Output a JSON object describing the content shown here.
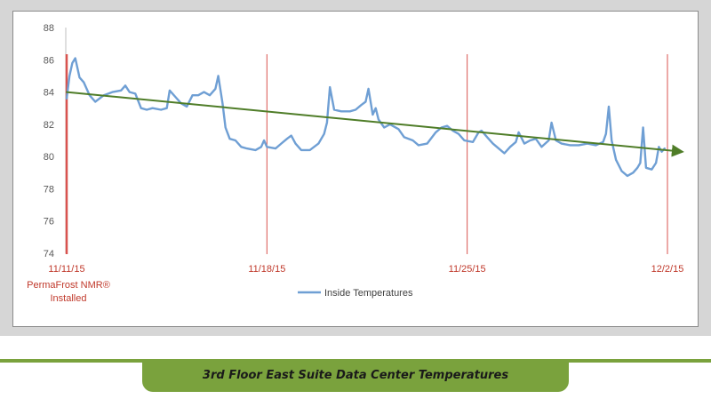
{
  "chart_data": {
    "type": "line",
    "title": "",
    "xlabel": "",
    "ylabel": "",
    "ylim": [
      74,
      88
    ],
    "yticks": [
      74,
      76,
      78,
      80,
      82,
      84,
      86,
      88
    ],
    "grid": false,
    "x_range_days": [
      0,
      20.9
    ],
    "date_markers": [
      {
        "day": 0,
        "label": "11/11/15",
        "note": [
          "PermaFrost NMR®",
          "Installed"
        ]
      },
      {
        "day": 7,
        "label": "11/18/15"
      },
      {
        "day": 14,
        "label": "11/25/15"
      },
      {
        "day": 21,
        "label": "12/2/15"
      }
    ],
    "legend": {
      "placement": "bottom-center",
      "entries": [
        "Inside Temperatures"
      ]
    },
    "series": [
      {
        "name": "Inside Temperatures",
        "color": "#6f9fd4",
        "points": [
          [
            0.0,
            83.6
          ],
          [
            0.1,
            85.0
          ],
          [
            0.2,
            85.8
          ],
          [
            0.3,
            86.1
          ],
          [
            0.45,
            84.9
          ],
          [
            0.6,
            84.6
          ],
          [
            0.8,
            83.8
          ],
          [
            1.0,
            83.4
          ],
          [
            1.3,
            83.8
          ],
          [
            1.6,
            84.0
          ],
          [
            1.9,
            84.1
          ],
          [
            2.05,
            84.4
          ],
          [
            2.2,
            84.0
          ],
          [
            2.4,
            83.9
          ],
          [
            2.6,
            83.0
          ],
          [
            2.8,
            82.9
          ],
          [
            3.0,
            83.0
          ],
          [
            3.3,
            82.9
          ],
          [
            3.5,
            83.0
          ],
          [
            3.6,
            84.1
          ],
          [
            3.8,
            83.7
          ],
          [
            4.0,
            83.3
          ],
          [
            4.2,
            83.1
          ],
          [
            4.4,
            83.8
          ],
          [
            4.6,
            83.8
          ],
          [
            4.8,
            84.0
          ],
          [
            5.0,
            83.8
          ],
          [
            5.2,
            84.2
          ],
          [
            5.3,
            85.0
          ],
          [
            5.45,
            83.3
          ],
          [
            5.55,
            81.8
          ],
          [
            5.7,
            81.1
          ],
          [
            5.9,
            81.0
          ],
          [
            6.1,
            80.6
          ],
          [
            6.3,
            80.5
          ],
          [
            6.6,
            80.4
          ],
          [
            6.8,
            80.6
          ],
          [
            6.9,
            81.0
          ],
          [
            7.0,
            80.6
          ],
          [
            7.3,
            80.5
          ],
          [
            7.5,
            80.8
          ],
          [
            7.7,
            81.1
          ],
          [
            7.85,
            81.3
          ],
          [
            8.0,
            80.8
          ],
          [
            8.2,
            80.4
          ],
          [
            8.5,
            80.4
          ],
          [
            8.8,
            80.8
          ],
          [
            9.0,
            81.4
          ],
          [
            9.1,
            82.1
          ],
          [
            9.2,
            84.3
          ],
          [
            9.35,
            82.9
          ],
          [
            9.6,
            82.8
          ],
          [
            9.9,
            82.8
          ],
          [
            10.1,
            82.9
          ],
          [
            10.3,
            83.2
          ],
          [
            10.45,
            83.4
          ],
          [
            10.55,
            84.2
          ],
          [
            10.7,
            82.6
          ],
          [
            10.8,
            83.0
          ],
          [
            10.9,
            82.3
          ],
          [
            11.1,
            81.8
          ],
          [
            11.3,
            82.0
          ],
          [
            11.6,
            81.7
          ],
          [
            11.8,
            81.2
          ],
          [
            12.1,
            81.0
          ],
          [
            12.3,
            80.7
          ],
          [
            12.6,
            80.8
          ],
          [
            12.9,
            81.5
          ],
          [
            13.1,
            81.8
          ],
          [
            13.3,
            81.9
          ],
          [
            13.5,
            81.6
          ],
          [
            13.7,
            81.4
          ],
          [
            13.9,
            81.0
          ],
          [
            14.2,
            80.9
          ],
          [
            14.4,
            81.5
          ],
          [
            14.5,
            81.6
          ],
          [
            14.7,
            81.2
          ],
          [
            14.9,
            80.8
          ],
          [
            15.1,
            80.5
          ],
          [
            15.3,
            80.2
          ],
          [
            15.5,
            80.6
          ],
          [
            15.7,
            80.9
          ],
          [
            15.8,
            81.5
          ],
          [
            16.0,
            80.8
          ],
          [
            16.2,
            81.0
          ],
          [
            16.4,
            81.1
          ],
          [
            16.6,
            80.6
          ],
          [
            16.85,
            81.0
          ],
          [
            16.95,
            82.1
          ],
          [
            17.1,
            81.0
          ],
          [
            17.3,
            80.8
          ],
          [
            17.6,
            80.7
          ],
          [
            17.9,
            80.7
          ],
          [
            18.2,
            80.8
          ],
          [
            18.5,
            80.7
          ],
          [
            18.75,
            80.9
          ],
          [
            18.85,
            81.4
          ],
          [
            18.95,
            83.1
          ],
          [
            19.05,
            81.0
          ],
          [
            19.2,
            79.8
          ],
          [
            19.4,
            79.1
          ],
          [
            19.6,
            78.8
          ],
          [
            19.8,
            79.0
          ],
          [
            19.95,
            79.3
          ],
          [
            20.05,
            79.6
          ],
          [
            20.15,
            81.8
          ],
          [
            20.25,
            79.3
          ],
          [
            20.45,
            79.2
          ],
          [
            20.6,
            79.6
          ],
          [
            20.7,
            80.6
          ],
          [
            20.8,
            80.3
          ],
          [
            20.9,
            80.5
          ]
        ]
      },
      {
        "name": "",
        "kind": "trendline",
        "color": "#4f7d28",
        "points": [
          [
            0.0,
            84.0
          ],
          [
            21.5,
            80.3
          ]
        ]
      }
    ]
  },
  "caption": {
    "text": "3rd Floor East Suite Data Center Temperatures"
  }
}
